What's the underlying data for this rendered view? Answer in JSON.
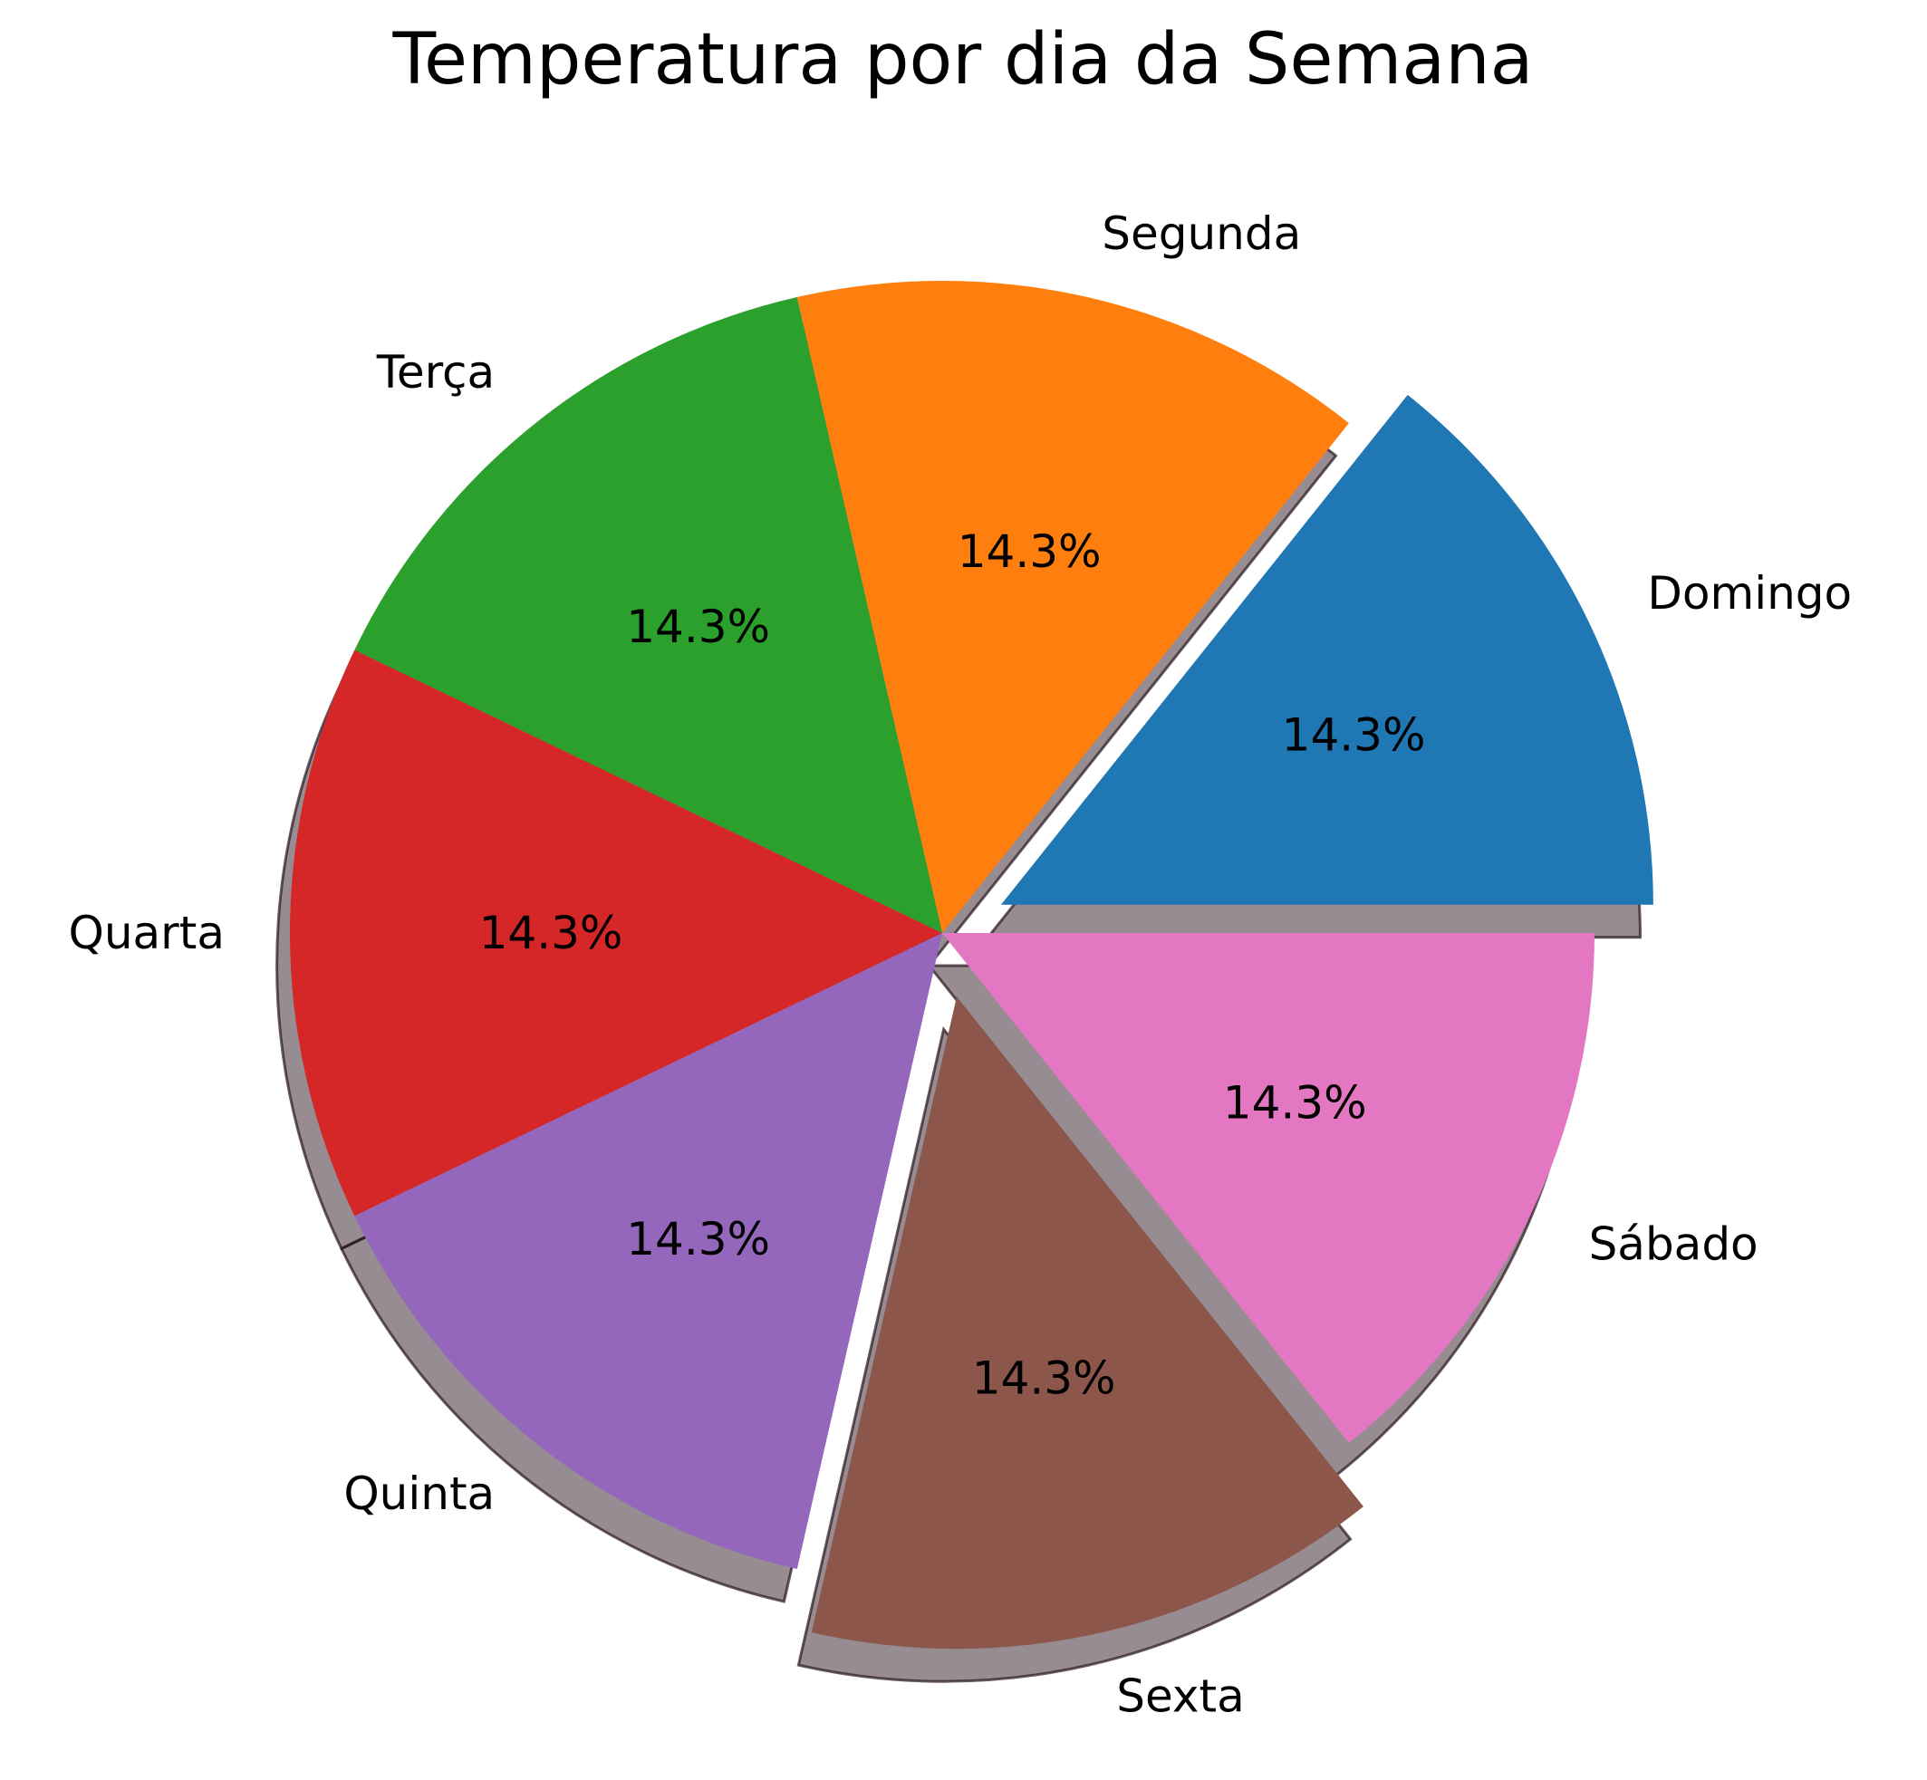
{
  "chart_data": {
    "type": "pie",
    "title": "Temperatura por dia da Semana",
    "categories": [
      "Domingo",
      "Segunda",
      "Terça",
      "Quarta",
      "Quinta",
      "Sexta",
      "Sábado"
    ],
    "values": [
      1,
      1,
      1,
      1,
      1,
      1,
      1
    ],
    "percent_labels": [
      "14.3%",
      "14.3%",
      "14.3%",
      "14.3%",
      "14.3%",
      "14.3%",
      "14.3%"
    ],
    "exploded": [
      true,
      false,
      false,
      false,
      false,
      true,
      false
    ],
    "colors": [
      "#1f77b4",
      "#ff7f0e",
      "#2ca02c",
      "#d62728",
      "#9467bd",
      "#8c564b",
      "#e377c2"
    ],
    "shadow": true,
    "start_angle_deg": 0,
    "direction": "counterclockwise"
  }
}
